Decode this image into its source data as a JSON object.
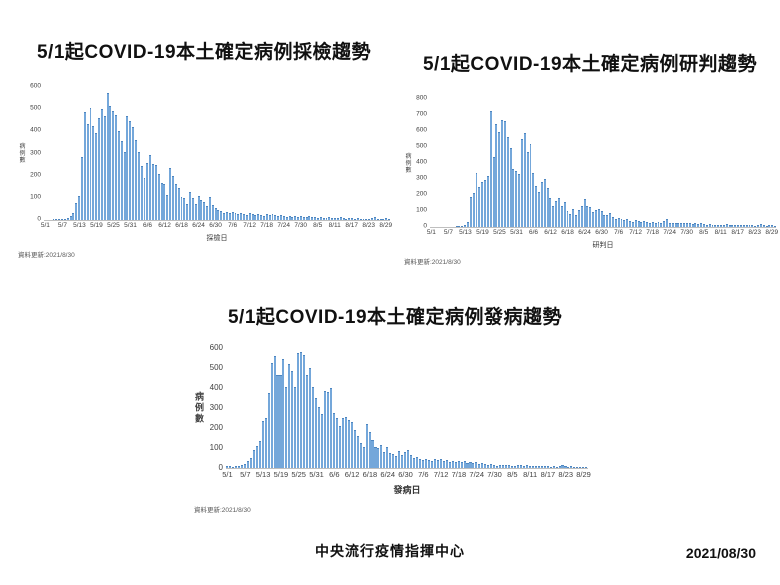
{
  "page": {
    "footer_center": "中央流行疫情指揮中心",
    "footer_right": "2021/08/30"
  },
  "chart_data": [
    {
      "id": "sampling-trend",
      "type": "bar",
      "title": "5/1起COVID-19本土確定病例採檢趨勢",
      "xlabel": "採檢日",
      "ylabel": "病例數",
      "updated_note": "資料更新:2021/8/30",
      "ylim": [
        0,
        600
      ],
      "yticks": [
        0,
        100,
        200,
        300,
        400,
        500,
        600
      ],
      "x_start": "5/1",
      "x_end": "8/30",
      "xtick_step_days": 6,
      "xtick_labels": [
        "5/1",
        "5/7",
        "5/13",
        "5/19",
        "5/25",
        "5/31",
        "6/6",
        "6/12",
        "6/18",
        "6/24",
        "6/30",
        "7/6",
        "7/12",
        "7/18",
        "7/24",
        "7/30",
        "8/5",
        "8/11",
        "8/17",
        "8/23",
        "8/29"
      ],
      "bar_color": "#74a7da",
      "grid": false,
      "legend": "none",
      "values": [
        0,
        0,
        0,
        2,
        2,
        3,
        3,
        5,
        8,
        15,
        30,
        75,
        105,
        280,
        480,
        430,
        500,
        420,
        390,
        455,
        495,
        465,
        565,
        510,
        485,
        470,
        395,
        350,
        305,
        465,
        440,
        415,
        355,
        305,
        240,
        185,
        255,
        290,
        250,
        245,
        205,
        165,
        160,
        110,
        230,
        195,
        160,
        140,
        100,
        95,
        70,
        125,
        95,
        70,
        105,
        90,
        80,
        60,
        100,
        65,
        50,
        45,
        40,
        30,
        35,
        30,
        35,
        30,
        25,
        30,
        25,
        20,
        30,
        25,
        20,
        25,
        20,
        15,
        25,
        20,
        25,
        20,
        15,
        20,
        15,
        10,
        15,
        10,
        15,
        10,
        15,
        10,
        10,
        15,
        10,
        10,
        8,
        10,
        8,
        6,
        10,
        8,
        6,
        8,
        10,
        6,
        5,
        8,
        6,
        5,
        6,
        5,
        4,
        5,
        4,
        6,
        10,
        5,
        4,
        5,
        8,
        4
      ]
    },
    {
      "id": "confirmation-trend",
      "type": "bar",
      "title": "5/1起COVID-19本土確定病例研判趨勢",
      "xlabel": "研判日",
      "ylabel": "病例數",
      "updated_note": "資料更新:2021/8/30",
      "ylim": [
        0,
        800
      ],
      "yticks": [
        0,
        100,
        200,
        300,
        400,
        500,
        600,
        700,
        800
      ],
      "x_start": "5/1",
      "x_end": "8/30",
      "xtick_step_days": 6,
      "xtick_labels": [
        "5/1",
        "5/7",
        "5/13",
        "5/19",
        "5/25",
        "5/31",
        "6/6",
        "6/12",
        "6/18",
        "6/24",
        "6/30",
        "7/6",
        "7/12",
        "7/18",
        "7/24",
        "7/30",
        "8/5",
        "8/11",
        "8/17",
        "8/23",
        "8/29"
      ],
      "bar_color": "#74a7da",
      "grid": false,
      "legend": "none",
      "values": [
        0,
        0,
        0,
        0,
        0,
        0,
        0,
        0,
        0,
        2,
        3,
        5,
        10,
        30,
        185,
        210,
        335,
        245,
        275,
        290,
        315,
        720,
        430,
        635,
        590,
        660,
        655,
        555,
        485,
        355,
        345,
        325,
        545,
        580,
        460,
        510,
        335,
        255,
        215,
        275,
        295,
        240,
        180,
        130,
        160,
        175,
        130,
        155,
        100,
        80,
        110,
        75,
        105,
        130,
        170,
        125,
        120,
        90,
        105,
        110,
        95,
        70,
        75,
        85,
        60,
        50,
        55,
        45,
        40,
        45,
        35,
        30,
        40,
        35,
        30,
        35,
        30,
        25,
        30,
        25,
        30,
        25,
        35,
        45,
        25,
        20,
        25,
        20,
        25,
        20,
        25,
        20,
        15,
        20,
        15,
        20,
        15,
        10,
        15,
        10,
        12,
        10,
        12,
        10,
        15,
        10,
        8,
        10,
        12,
        8,
        10,
        8,
        10,
        8,
        6,
        10,
        15,
        8,
        6,
        8,
        10,
        6
      ]
    },
    {
      "id": "onset-trend",
      "type": "bar",
      "title": "5/1起COVID-19本土確定病例發病趨勢",
      "xlabel": "發病日",
      "ylabel": "病例數",
      "updated_note": "資料更新:2021/8/30",
      "ylim": [
        0,
        600
      ],
      "yticks": [
        0,
        100,
        200,
        300,
        400,
        500,
        600
      ],
      "x_start": "5/1",
      "x_end": "8/30",
      "xtick_step_days": 6,
      "xtick_labels": [
        "5/1",
        "5/7",
        "5/13",
        "5/19",
        "5/25",
        "5/31",
        "6/6",
        "6/12",
        "6/18",
        "6/24",
        "6/30",
        "7/6",
        "7/12",
        "7/18",
        "7/24",
        "7/30",
        "8/5",
        "8/11",
        "8/17",
        "8/23",
        "8/29"
      ],
      "bar_color": "#74a7da",
      "grid": false,
      "legend": "none",
      "values": [
        8,
        6,
        5,
        6,
        10,
        15,
        20,
        35,
        50,
        90,
        105,
        130,
        230,
        245,
        370,
        520,
        555,
        460,
        460,
        540,
        400,
        515,
        480,
        400,
        570,
        575,
        560,
        460,
        495,
        400,
        345,
        300,
        265,
        380,
        375,
        395,
        270,
        245,
        205,
        245,
        250,
        235,
        225,
        185,
        155,
        120,
        100,
        215,
        175,
        135,
        100,
        95,
        110,
        80,
        100,
        75,
        70,
        60,
        85,
        65,
        80,
        90,
        65,
        50,
        55,
        45,
        40,
        45,
        40,
        35,
        45,
        40,
        45,
        35,
        40,
        30,
        35,
        30,
        35,
        30,
        35,
        25,
        30,
        25,
        30,
        20,
        25,
        20,
        15,
        20,
        15,
        10,
        12,
        15,
        12,
        15,
        10,
        8,
        12,
        15,
        10,
        12,
        10,
        8,
        10,
        8,
        6,
        8,
        6,
        5,
        6,
        5,
        8,
        15,
        6,
        5,
        6,
        4,
        5,
        4,
        5,
        3
      ]
    }
  ]
}
